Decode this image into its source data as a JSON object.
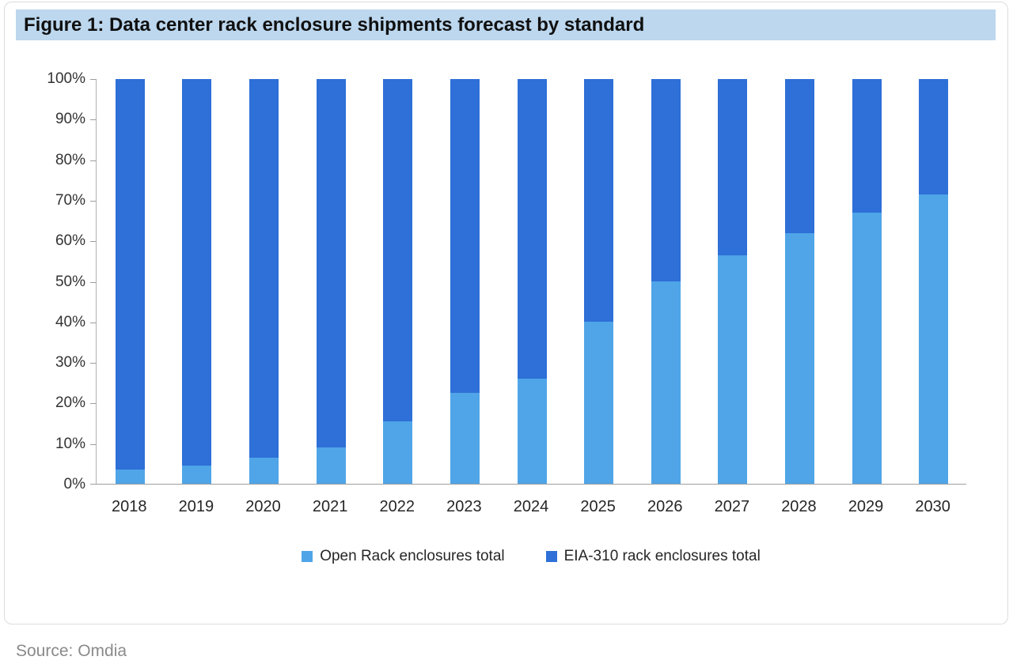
{
  "figure": {
    "title": "Figure 1: Data center rack enclosure shipments forecast by standard",
    "source": "Source: Omdia"
  },
  "colors": {
    "title_background": "#bcd7ee",
    "open_rack_blue": "#4fa5e7",
    "eia_310_blue": "#2e6fd8"
  },
  "chart_data": {
    "type": "bar",
    "stacked": true,
    "percent": true,
    "title": "Figure 1: Data center rack enclosure shipments forecast by standard",
    "xlabel": "",
    "ylabel": "",
    "ylim": [
      0,
      100
    ],
    "grid": false,
    "legend_position": "bottom",
    "yticks": [
      "0%",
      "10%",
      "20%",
      "30%",
      "40%",
      "50%",
      "60%",
      "70%",
      "80%",
      "90%",
      "100%"
    ],
    "categories": [
      "2018",
      "2019",
      "2020",
      "2021",
      "2022",
      "2023",
      "2024",
      "2025",
      "2026",
      "2027",
      "2028",
      "2029",
      "2030"
    ],
    "series": [
      {
        "name": "Open Rack enclosures total",
        "color": "#4fa5e7",
        "values": [
          3.5,
          4.5,
          6.5,
          9,
          15.5,
          22.5,
          26,
          40,
          50,
          56.5,
          62,
          67,
          71.5
        ]
      },
      {
        "name": "EIA-310 rack enclosures total",
        "color": "#2e6fd8",
        "values": [
          96.5,
          95.5,
          93.5,
          91,
          84.5,
          77.5,
          74,
          60,
          50,
          43.5,
          38,
          33,
          28.5
        ]
      }
    ]
  }
}
